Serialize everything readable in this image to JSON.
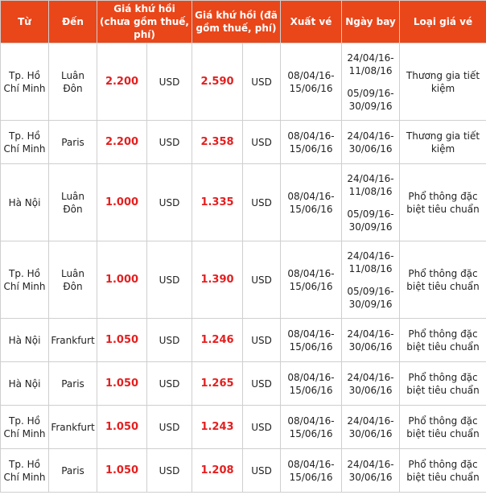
{
  "headers": [
    "Từ",
    "Đến",
    "Giá khứ hồi (chưa gồm thuế, phí)",
    "Giá khứ hồi (đã gồm thuế, phí)",
    "Xuất vé",
    "Ngày bay",
    "Loại giá vé"
  ],
  "rows": [
    {
      "from": "Tp. Hồ Chí Minh",
      "to": "Luân Đôn",
      "price_ex": "2.200",
      "cur_ex": "USD",
      "price_inc": "2.590",
      "cur_inc": "USD",
      "ticketing": "08/04/16-15/06/16",
      "travel_1": "24/04/16-11/08/16",
      "travel_2": "05/09/16-30/09/16",
      "fare_class": "Thương gia tiết kiệm"
    },
    {
      "from": "Tp. Hồ Chí Minh",
      "to": "Paris",
      "price_ex": "2.200",
      "cur_ex": "USD",
      "price_inc": "2.358",
      "cur_inc": "USD",
      "ticketing": "08/04/16-15/06/16",
      "travel_1": "24/04/16-30/06/16",
      "travel_2": "",
      "fare_class": "Thương gia tiết kiệm"
    },
    {
      "from": "Hà Nội",
      "to": "Luân Đôn",
      "price_ex": "1.000",
      "cur_ex": "USD",
      "price_inc": "1.335",
      "cur_inc": "USD",
      "ticketing": "08/04/16-15/06/16",
      "travel_1": "24/04/16-11/08/16",
      "travel_2": "05/09/16-30/09/16",
      "fare_class": "Phổ thông đặc biệt tiêu chuẩn"
    },
    {
      "from": "Tp. Hồ Chí Minh",
      "to": "Luân Đôn",
      "price_ex": "1.000",
      "cur_ex": "USD",
      "price_inc": "1.390",
      "cur_inc": "USD",
      "ticketing": "08/04/16-15/06/16",
      "travel_1": "24/04/16-11/08/16",
      "travel_2": "05/09/16-30/09/16",
      "fare_class": "Phổ thông đặc biệt tiêu chuẩn"
    },
    {
      "from": "Hà Nội",
      "to": "Frankfurt",
      "price_ex": "1.050",
      "cur_ex": "USD",
      "price_inc": "1.246",
      "cur_inc": "USD",
      "ticketing": "08/04/16-15/06/16",
      "travel_1": "24/04/16-30/06/16",
      "travel_2": "",
      "fare_class": "Phổ thông đặc biệt tiêu chuẩn"
    },
    {
      "from": "Hà Nội",
      "to": "Paris",
      "price_ex": "1.050",
      "cur_ex": "USD",
      "price_inc": "1.265",
      "cur_inc": "USD",
      "ticketing": "08/04/16-15/06/16",
      "travel_1": "24/04/16-30/06/16",
      "travel_2": "",
      "fare_class": "Phổ thông đặc biệt tiêu chuẩn"
    },
    {
      "from": "Tp. Hồ Chí Minh",
      "to": "Frankfurt",
      "price_ex": "1.050",
      "cur_ex": "USD",
      "price_inc": "1.243",
      "cur_inc": "USD",
      "ticketing": "08/04/16-15/06/16",
      "travel_1": "24/04/16-30/06/16",
      "travel_2": "",
      "fare_class": "Phổ thông đặc biệt tiêu chuẩn"
    },
    {
      "from": "Tp. Hồ Chí Minh",
      "to": "Paris",
      "price_ex": "1.050",
      "cur_ex": "USD",
      "price_inc": "1.208",
      "cur_inc": "USD",
      "ticketing": "08/04/16-15/06/16",
      "travel_1": "24/04/16-30/06/16",
      "travel_2": "",
      "fare_class": "Phổ thông đặc biệt tiêu chuẩn"
    }
  ]
}
